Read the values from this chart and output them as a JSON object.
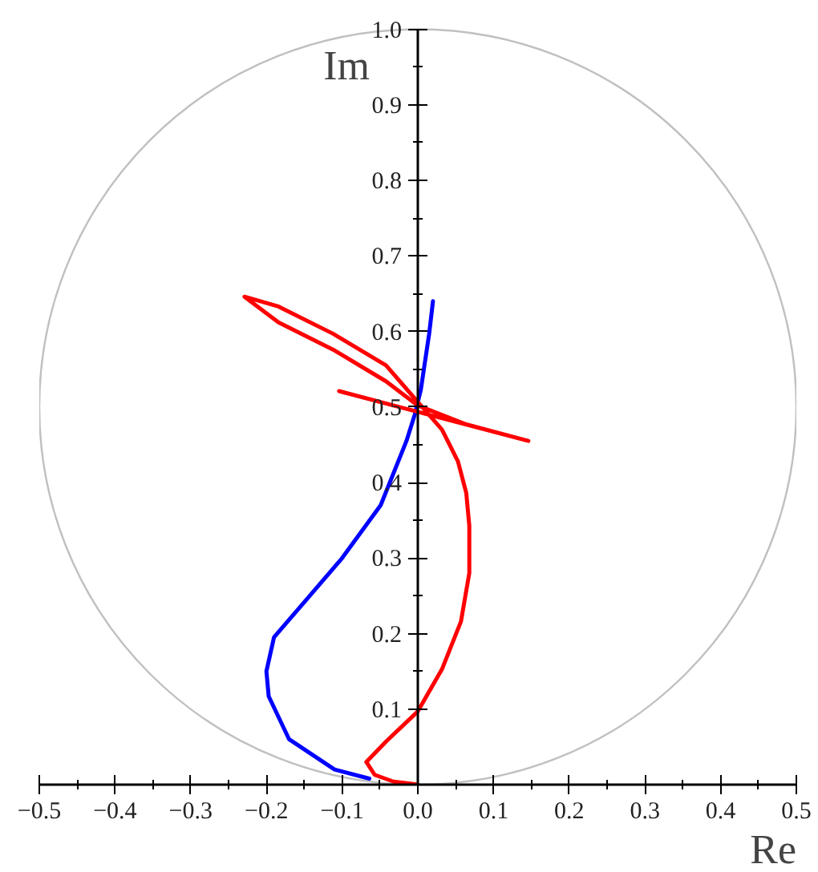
{
  "chart_data": {
    "type": "line",
    "xlabel": "Re",
    "ylabel": "Im",
    "xlim": [
      -0.5,
      0.5
    ],
    "ylim": [
      0,
      1
    ],
    "xticks": [
      -0.5,
      -0.4,
      -0.3,
      -0.2,
      -0.1,
      {
        "value": 0,
        "label": "0.0"
      },
      0.1,
      0.2,
      0.3,
      0.4,
      0.5
    ],
    "yticks": [
      0.1,
      0.2,
      0.3,
      0.4,
      0.5,
      0.6,
      0.7,
      0.8,
      0.9,
      {
        "value": 1,
        "label": "1.0"
      }
    ],
    "grid": false,
    "marker": "none",
    "line_style": "solid",
    "series": [
      {
        "color": "#0000ff",
        "x": [
          -0.064,
          -0.11,
          -0.17,
          -0.197,
          -0.2,
          -0.19,
          -0.148,
          -0.1,
          -0.049,
          -0.015,
          -0.004,
          0.004,
          0.015,
          0.02
        ],
        "values": [
          0.008,
          0.02,
          0.06,
          0.117,
          0.15,
          0.195,
          0.244,
          0.3,
          0.37,
          0.455,
          0.49,
          0.523,
          0.597,
          0.64
        ]
      },
      {
        "color": "#ff0000",
        "x": [
          0,
          -0.032,
          -0.057,
          -0.068,
          -0.042,
          0,
          0.032,
          0.057,
          0.068,
          0.068,
          0.064,
          0.053,
          0.032,
          0.004,
          -0.042,
          -0.112,
          -0.184,
          -0.229,
          -0.184,
          -0.112,
          -0.042,
          0,
          0.064,
          0.146,
          -0.104
        ],
        "values": [
          0,
          0.004,
          0.013,
          0.03,
          0.057,
          0.097,
          0.153,
          0.216,
          0.28,
          0.343,
          0.386,
          0.428,
          0.47,
          0.502,
          0.555,
          0.597,
          0.633,
          0.646,
          0.612,
          0.576,
          0.534,
          0.502,
          0.477,
          0.455,
          0.521
        ]
      }
    ]
  }
}
